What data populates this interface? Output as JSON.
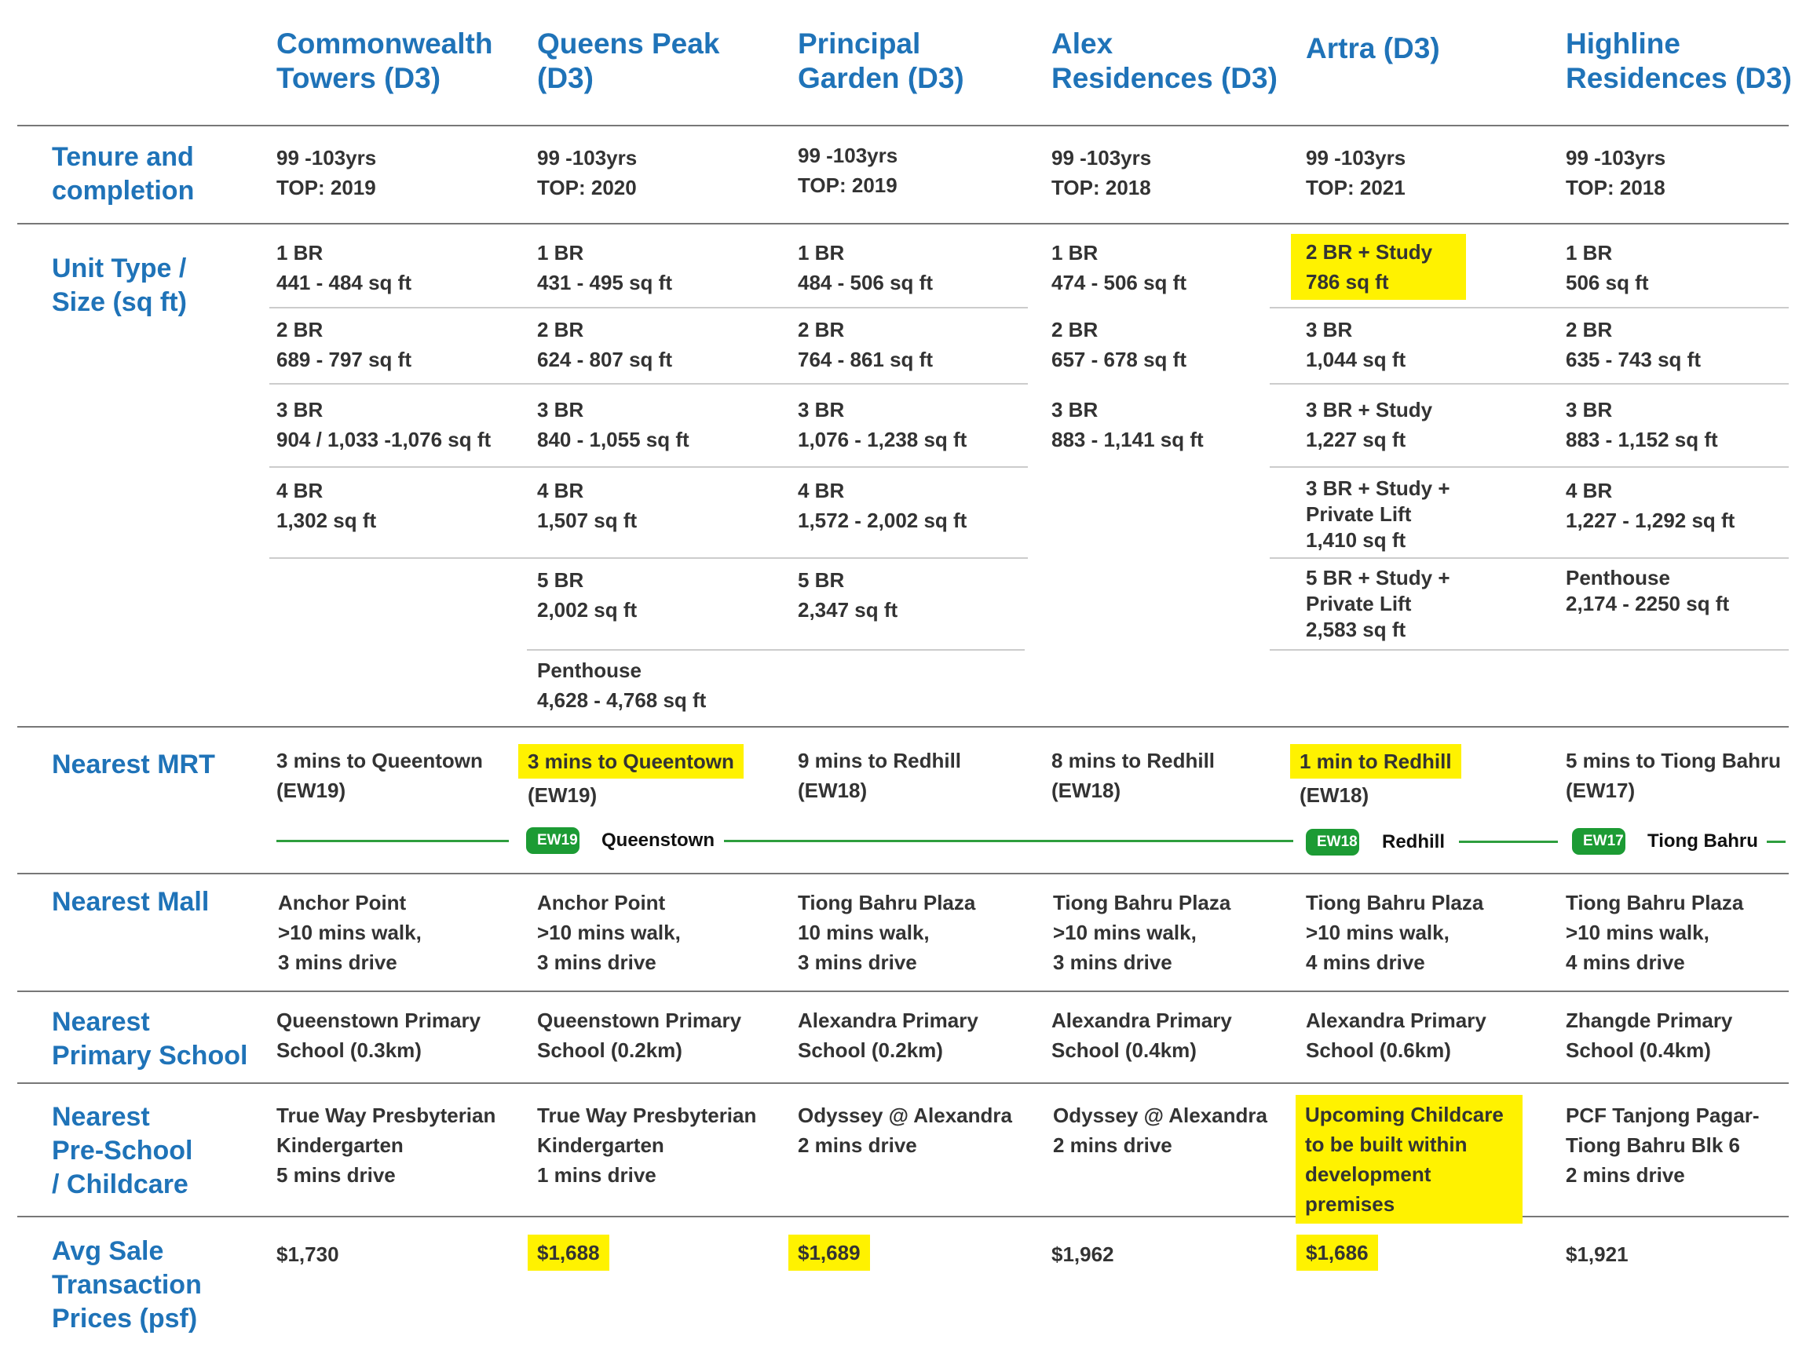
{
  "headers": [
    "Commonwealth\nTowers (D3)",
    "Queens Peak\n(D3)",
    "Principal\nGarden (D3)",
    "Alex\nResidences (D3)",
    "Artra (D3)",
    "Highline\nResidences (D3)"
  ],
  "labels": {
    "tenure": "Tenure and\ncompletion",
    "unit": "Unit Type /\nSize (sq ft)",
    "mrt": "Nearest MRT",
    "mall": "Nearest Mall",
    "primary": "Nearest\nPrimary School",
    "preschool": "Nearest\nPre-School\n/ Childcare",
    "price": "Avg Sale\nTransaction\nPrices (psf)"
  },
  "tenure": [
    "99 -103yrs\nTOP: 2019",
    "99 -103yrs\nTOP: 2020",
    "99 -103yrs\nTOP: 2019",
    "99 -103yrs\nTOP: 2018",
    "99 -103yrs\nTOP: 2021",
    "99 -103yrs\nTOP: 2018"
  ],
  "units": {
    "commonwealth": [
      "1 BR\n441 - 484 sq ft",
      "2 BR\n689 - 797 sq ft",
      "3 BR\n904 / 1,033 -1,076 sq ft",
      "4 BR\n1,302 sq ft"
    ],
    "queens": [
      "1 BR\n431 - 495 sq ft",
      "2 BR\n624 - 807 sq ft",
      "3 BR\n840 - 1,055 sq ft",
      "4 BR\n1,507 sq ft",
      "5 BR\n2,002 sq ft",
      "Penthouse\n4,628 - 4,768 sq ft"
    ],
    "principal": [
      "1 BR\n484 - 506 sq ft",
      "2 BR\n764 - 861 sq ft",
      "3 BR\n1,076 - 1,238 sq ft",
      "4 BR\n1,572 - 2,002 sq ft",
      "5 BR\n2,347 sq ft"
    ],
    "alex": [
      "1 BR\n474 - 506 sq ft",
      "2 BR\n657 - 678 sq ft",
      "3 BR\n883 - 1,141 sq ft"
    ],
    "artra": [
      "2 BR + Study\n786 sq ft",
      "3 BR\n1,044 sq ft",
      "3 BR + Study\n1,227 sq ft",
      "3 BR + Study +\nPrivate Lift\n1,410 sq ft",
      "5 BR + Study +\nPrivate Lift\n2,583 sq ft"
    ],
    "highline": [
      "1 BR\n506 sq ft",
      "2 BR\n635 - 743 sq ft",
      "3 BR\n883 - 1,152 sq ft",
      "4 BR\n1,227 - 1,292 sq ft",
      "Penthouse\n2,174 - 2250 sq ft"
    ]
  },
  "mrt": [
    {
      "line1": "3 mins to Queentown",
      "line2": "(EW19)"
    },
    {
      "line1": "3 mins to Queentown",
      "line2": "(EW19)"
    },
    {
      "line1": "9 mins to Redhill",
      "line2": "(EW18)"
    },
    {
      "line1": "8 mins to Redhill",
      "line2": "(EW18)"
    },
    {
      "line1": "1 min to Redhill",
      "line2": "(EW18)"
    },
    {
      "line1": "5 mins to Tiong Bahru",
      "line2": "(EW17)"
    }
  ],
  "stations": [
    {
      "code": "EW19",
      "name": "Queenstown"
    },
    {
      "code": "EW18",
      "name": "Redhill"
    },
    {
      "code": "EW17",
      "name": "Tiong Bahru"
    }
  ],
  "mall": [
    "Anchor Point\n>10 mins walk,\n3 mins drive",
    "Anchor Point\n>10 mins walk,\n3 mins drive",
    "Tiong Bahru Plaza\n10 mins walk,\n3 mins drive",
    "Tiong Bahru Plaza\n>10 mins walk,\n3 mins drive",
    "Tiong Bahru Plaza\n>10 mins walk,\n4 mins drive",
    "Tiong Bahru Plaza\n>10 mins walk,\n4 mins drive"
  ],
  "primary": [
    "Queenstown Primary\nSchool (0.3km)",
    "Queenstown Primary\nSchool (0.2km)",
    "Alexandra Primary\nSchool (0.2km)",
    "Alexandra Primary\nSchool (0.4km)",
    "Alexandra Primary\nSchool (0.6km)",
    "Zhangde Primary\nSchool (0.4km)"
  ],
  "preschool": [
    "True Way Presbyterian\nKindergarten\n5 mins drive",
    "True Way Presbyterian\nKindergarten\n1 mins drive",
    "Odyssey @ Alexandra\n2 mins drive",
    "Odyssey @ Alexandra\n2 mins drive",
    "Upcoming Childcare\nto be built within\ndevelopment premises",
    "PCF Tanjong Pagar-\nTiong Bahru Blk 6\n2 mins drive"
  ],
  "price": [
    "$1,730",
    "$1,688",
    "$1,689",
    "$1,962",
    "$1,686",
    "$1,921"
  ],
  "colors": {
    "accent": "#1f73b8",
    "highlight": "#fff200",
    "mrt_green": "#1c9b34"
  }
}
